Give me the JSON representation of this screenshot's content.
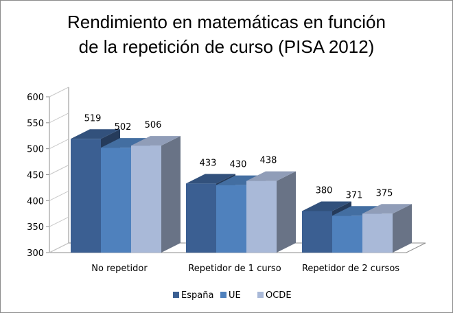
{
  "chart_data": {
    "type": "bar",
    "title": "Rendimiento en matemáticas en función de la repetición de curso (PISA 2012)",
    "title_lines": [
      "Rendimiento en matemáticas en función",
      "de la repetición de curso (PISA 2012)"
    ],
    "categories": [
      "No repetidor",
      "Repetidor de 1 curso",
      "Repetidor de 2 cursos"
    ],
    "series": [
      {
        "name": "España",
        "values": [
          519,
          433,
          380
        ],
        "color": "#3b5f92"
      },
      {
        "name": "UE",
        "values": [
          502,
          430,
          371
        ],
        "color": "#4f81bd"
      },
      {
        "name": "OCDE",
        "values": [
          506,
          438,
          375
        ],
        "color": "#a9b9d8"
      }
    ],
    "yticks": [
      300,
      350,
      400,
      450,
      500,
      550,
      600
    ],
    "ylim": [
      300,
      600
    ],
    "grid": false,
    "three_d": true,
    "legend_position": "bottom"
  }
}
